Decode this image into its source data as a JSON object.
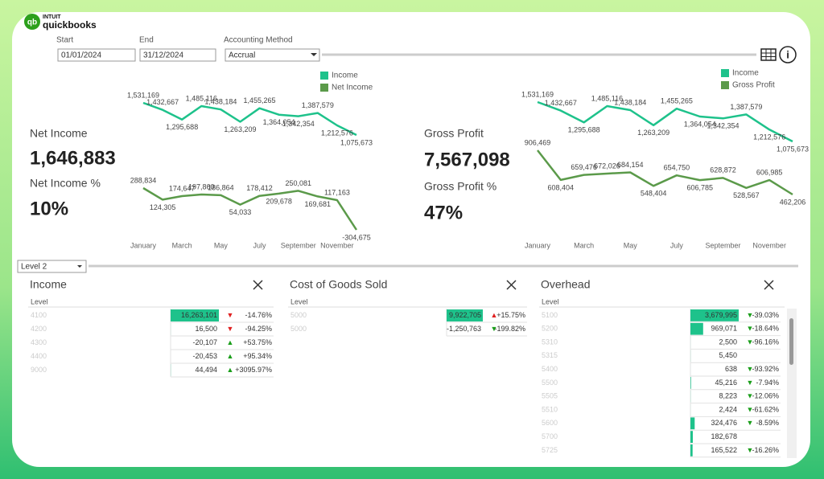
{
  "header": {
    "brand": "INTUIT",
    "product": "quickbooks"
  },
  "filters": {
    "start_label": "Start",
    "start": "01/01/2024",
    "end_label": "End",
    "end": "31/12/2024",
    "method_label": "Accounting Method",
    "method": "Accrual"
  },
  "kpis_left": [
    {
      "label": "Net Income",
      "value": "1,646,883"
    },
    {
      "label": "Net Income %",
      "value": "10%"
    }
  ],
  "kpis_right": [
    {
      "label": "Gross Profit",
      "value": "7,567,098"
    },
    {
      "label": "Gross Profit %",
      "value": "47%"
    }
  ],
  "chart_data": [
    {
      "type": "line",
      "categories": [
        "January",
        null,
        "March",
        null,
        "May",
        null,
        "July",
        null,
        "September",
        null,
        "November",
        null
      ],
      "series": [
        {
          "name": "Income",
          "color": "#1ec28b",
          "values": [
            1531169,
            1432667,
            1295688,
            1485116,
            1438184,
            1263209,
            1455265,
            1364054,
            1342354,
            1387579,
            1212576,
            1075673
          ],
          "value_labels": [
            "1,531,169",
            "1,432,667",
            "1,295,688",
            "1,485,116",
            "1,438,184",
            "1,263,209",
            "1,455,265",
            "1,364,054",
            "1,342,354",
            "1,387,579",
            "1,212,576",
            "1,075,673"
          ]
        },
        {
          "name": "Net Income",
          "color": "#5b9a4a",
          "values": [
            288834,
            124305,
            174647,
            197860,
            186864,
            54033,
            178412,
            209678,
            250081,
            169681,
            117163,
            -304675
          ],
          "value_labels": [
            "288,834",
            "124,305",
            "174,647",
            "197,860",
            "186,864",
            "54,033",
            "178,412",
            "209,678",
            "250,081",
            "169,681",
            "117,163",
            "-304,675"
          ]
        }
      ]
    },
    {
      "type": "line",
      "categories": [
        "January",
        null,
        "March",
        null,
        "May",
        null,
        "July",
        null,
        "September",
        null,
        "November",
        null
      ],
      "series": [
        {
          "name": "Income",
          "color": "#1ec28b",
          "values": [
            1531169,
            1432667,
            1295688,
            1485116,
            1438184,
            1263209,
            1455265,
            1364054,
            1342354,
            1387579,
            1212576,
            1075673
          ],
          "value_labels": [
            "1,531,169",
            "1,432,667",
            "1,295,688",
            "1,485,116",
            "1,438,184",
            "1,263,209",
            "1,455,265",
            "1,364,054",
            "1,342,354",
            "1,387,579",
            "1,212,576",
            "1,075,673"
          ]
        },
        {
          "name": "Gross Profit",
          "color": "#5b9a4a",
          "values": [
            906469,
            608404,
            659476,
            672026,
            684154,
            548404,
            654750,
            606785,
            628872,
            528567,
            606985,
            462206
          ],
          "value_labels": [
            "906,469",
            "608,404",
            "659,476",
            "672,026",
            "684,154",
            "548,404",
            "654,750",
            "606,785",
            "628,872",
            "528,567",
            "606,985",
            "462,206"
          ]
        }
      ]
    }
  ],
  "level_selector": "Level 2",
  "tables": [
    {
      "title": "Income",
      "column": "Level",
      "rows": [
        {
          "code": "4100",
          "amount": 16263101,
          "amount_label": "16,263,101",
          "arrow": "▼",
          "arrow_color": "#e02020",
          "change": "-14.76%"
        },
        {
          "code": "4200",
          "amount": 16500,
          "amount_label": "16,500",
          "arrow": "▼",
          "arrow_color": "#e02020",
          "change": "-94.25%"
        },
        {
          "code": "4300",
          "amount": -20107,
          "amount_label": "-20,107",
          "arrow": "▲",
          "arrow_color": "#1a9e1a",
          "change": "+53.75%"
        },
        {
          "code": "4400",
          "amount": -20453,
          "amount_label": "-20,453",
          "arrow": "▲",
          "arrow_color": "#1a9e1a",
          "change": "+95.34%"
        },
        {
          "code": "9000",
          "amount": 44494,
          "amount_label": "44,494",
          "arrow": "▲",
          "arrow_color": "#1a9e1a",
          "change": "+3095.97%"
        }
      ]
    },
    {
      "title": "Cost of Goods Sold",
      "column": "Level",
      "rows": [
        {
          "code": "5000",
          "amount": 9922705,
          "amount_label": "9,922,705",
          "arrow": "▲",
          "arrow_color": "#e02020",
          "change": "+15.75%"
        },
        {
          "code": "5000",
          "amount": -1250763,
          "amount_label": "-1,250,763",
          "arrow": "▼",
          "arrow_color": "#1a9e1a",
          "change": "-199.82%"
        }
      ]
    },
    {
      "title": "Overhead",
      "column": "Level",
      "rows": [
        {
          "code": "5100",
          "amount": 3679995,
          "amount_label": "3,679,995",
          "arrow": "▼",
          "arrow_color": "#1a9e1a",
          "change": "-39.03%"
        },
        {
          "code": "5200",
          "amount": 969071,
          "amount_label": "969,071",
          "arrow": "▼",
          "arrow_color": "#1a9e1a",
          "change": "-18.64%"
        },
        {
          "code": "5310",
          "amount": 2500,
          "amount_label": "2,500",
          "arrow": "▼",
          "arrow_color": "#1a9e1a",
          "change": "-96.16%"
        },
        {
          "code": "5315",
          "amount": 5450,
          "amount_label": "5,450"
        },
        {
          "code": "5400",
          "amount": 638,
          "amount_label": "638",
          "arrow": "▼",
          "arrow_color": "#1a9e1a",
          "change": "-93.92%"
        },
        {
          "code": "5500",
          "amount": 45216,
          "amount_label": "45,216",
          "arrow": "▼",
          "arrow_color": "#1a9e1a",
          "change": "-7.94%"
        },
        {
          "code": "5505",
          "amount": 8223,
          "amount_label": "8,223",
          "arrow": "▼",
          "arrow_color": "#1a9e1a",
          "change": "-12.06%"
        },
        {
          "code": "5510",
          "amount": 2424,
          "amount_label": "2,424",
          "arrow": "▼",
          "arrow_color": "#1a9e1a",
          "change": "-61.62%"
        },
        {
          "code": "5600",
          "amount": 324476,
          "amount_label": "324,476",
          "arrow": "▼",
          "arrow_color": "#1a9e1a",
          "change": "-8.59%"
        },
        {
          "code": "5700",
          "amount": 182678,
          "amount_label": "182,678"
        },
        {
          "code": "5725",
          "amount": 165522,
          "amount_label": "165,522",
          "arrow": "▼",
          "arrow_color": "#1a9e1a",
          "change": "-16.26%"
        }
      ]
    }
  ]
}
